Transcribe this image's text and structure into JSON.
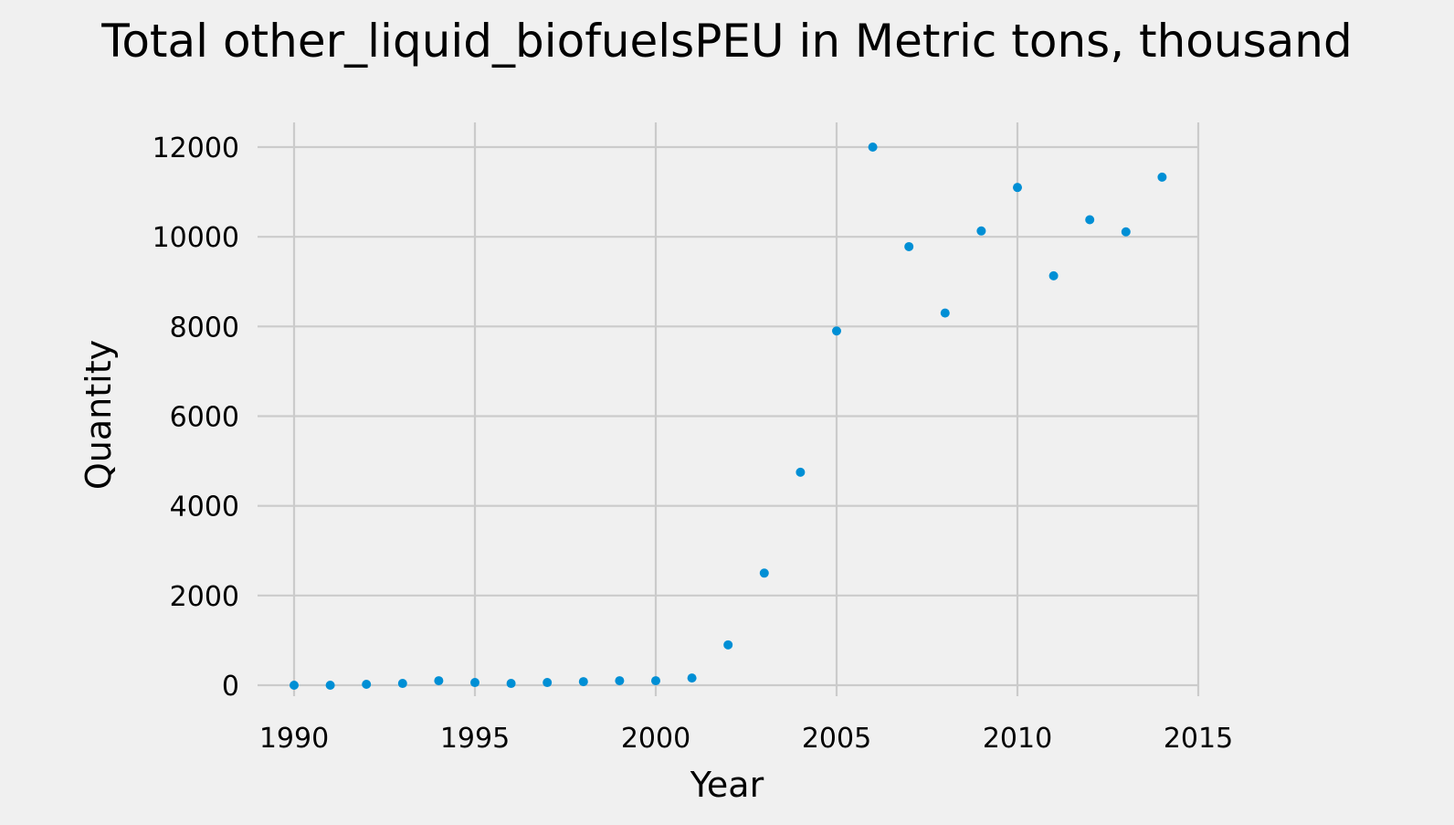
{
  "chart_data": {
    "type": "scatter",
    "title": "Total other_liquid_biofuelsPEU in Metric tons,  thousand",
    "xlabel": "Year",
    "ylabel": "Quantity",
    "xlim": [
      1990,
      2015
    ],
    "ylim": [
      0,
      12000
    ],
    "xticks": [
      "1990",
      "1995",
      "2000",
      "2005",
      "2010",
      "2015"
    ],
    "yticks": [
      "0",
      "2000",
      "4000",
      "6000",
      "8000",
      "10000",
      "12000"
    ],
    "grid": true,
    "marker_color": "#008fd5",
    "series": [
      {
        "x": [
          1990,
          1991,
          1992,
          1993,
          1994,
          1995,
          1996,
          1997,
          1998,
          1999,
          2000,
          2001,
          2002,
          2003,
          2004,
          2005,
          2006,
          2007,
          2008,
          2009,
          2010,
          2011,
          2012,
          2013,
          2014
        ],
        "y": [
          0,
          0,
          20,
          40,
          100,
          60,
          40,
          60,
          80,
          100,
          100,
          160,
          900,
          2500,
          4750,
          7900,
          12000,
          9780,
          8300,
          10130,
          11100,
          9130,
          10380,
          10110,
          11330
        ]
      }
    ]
  }
}
